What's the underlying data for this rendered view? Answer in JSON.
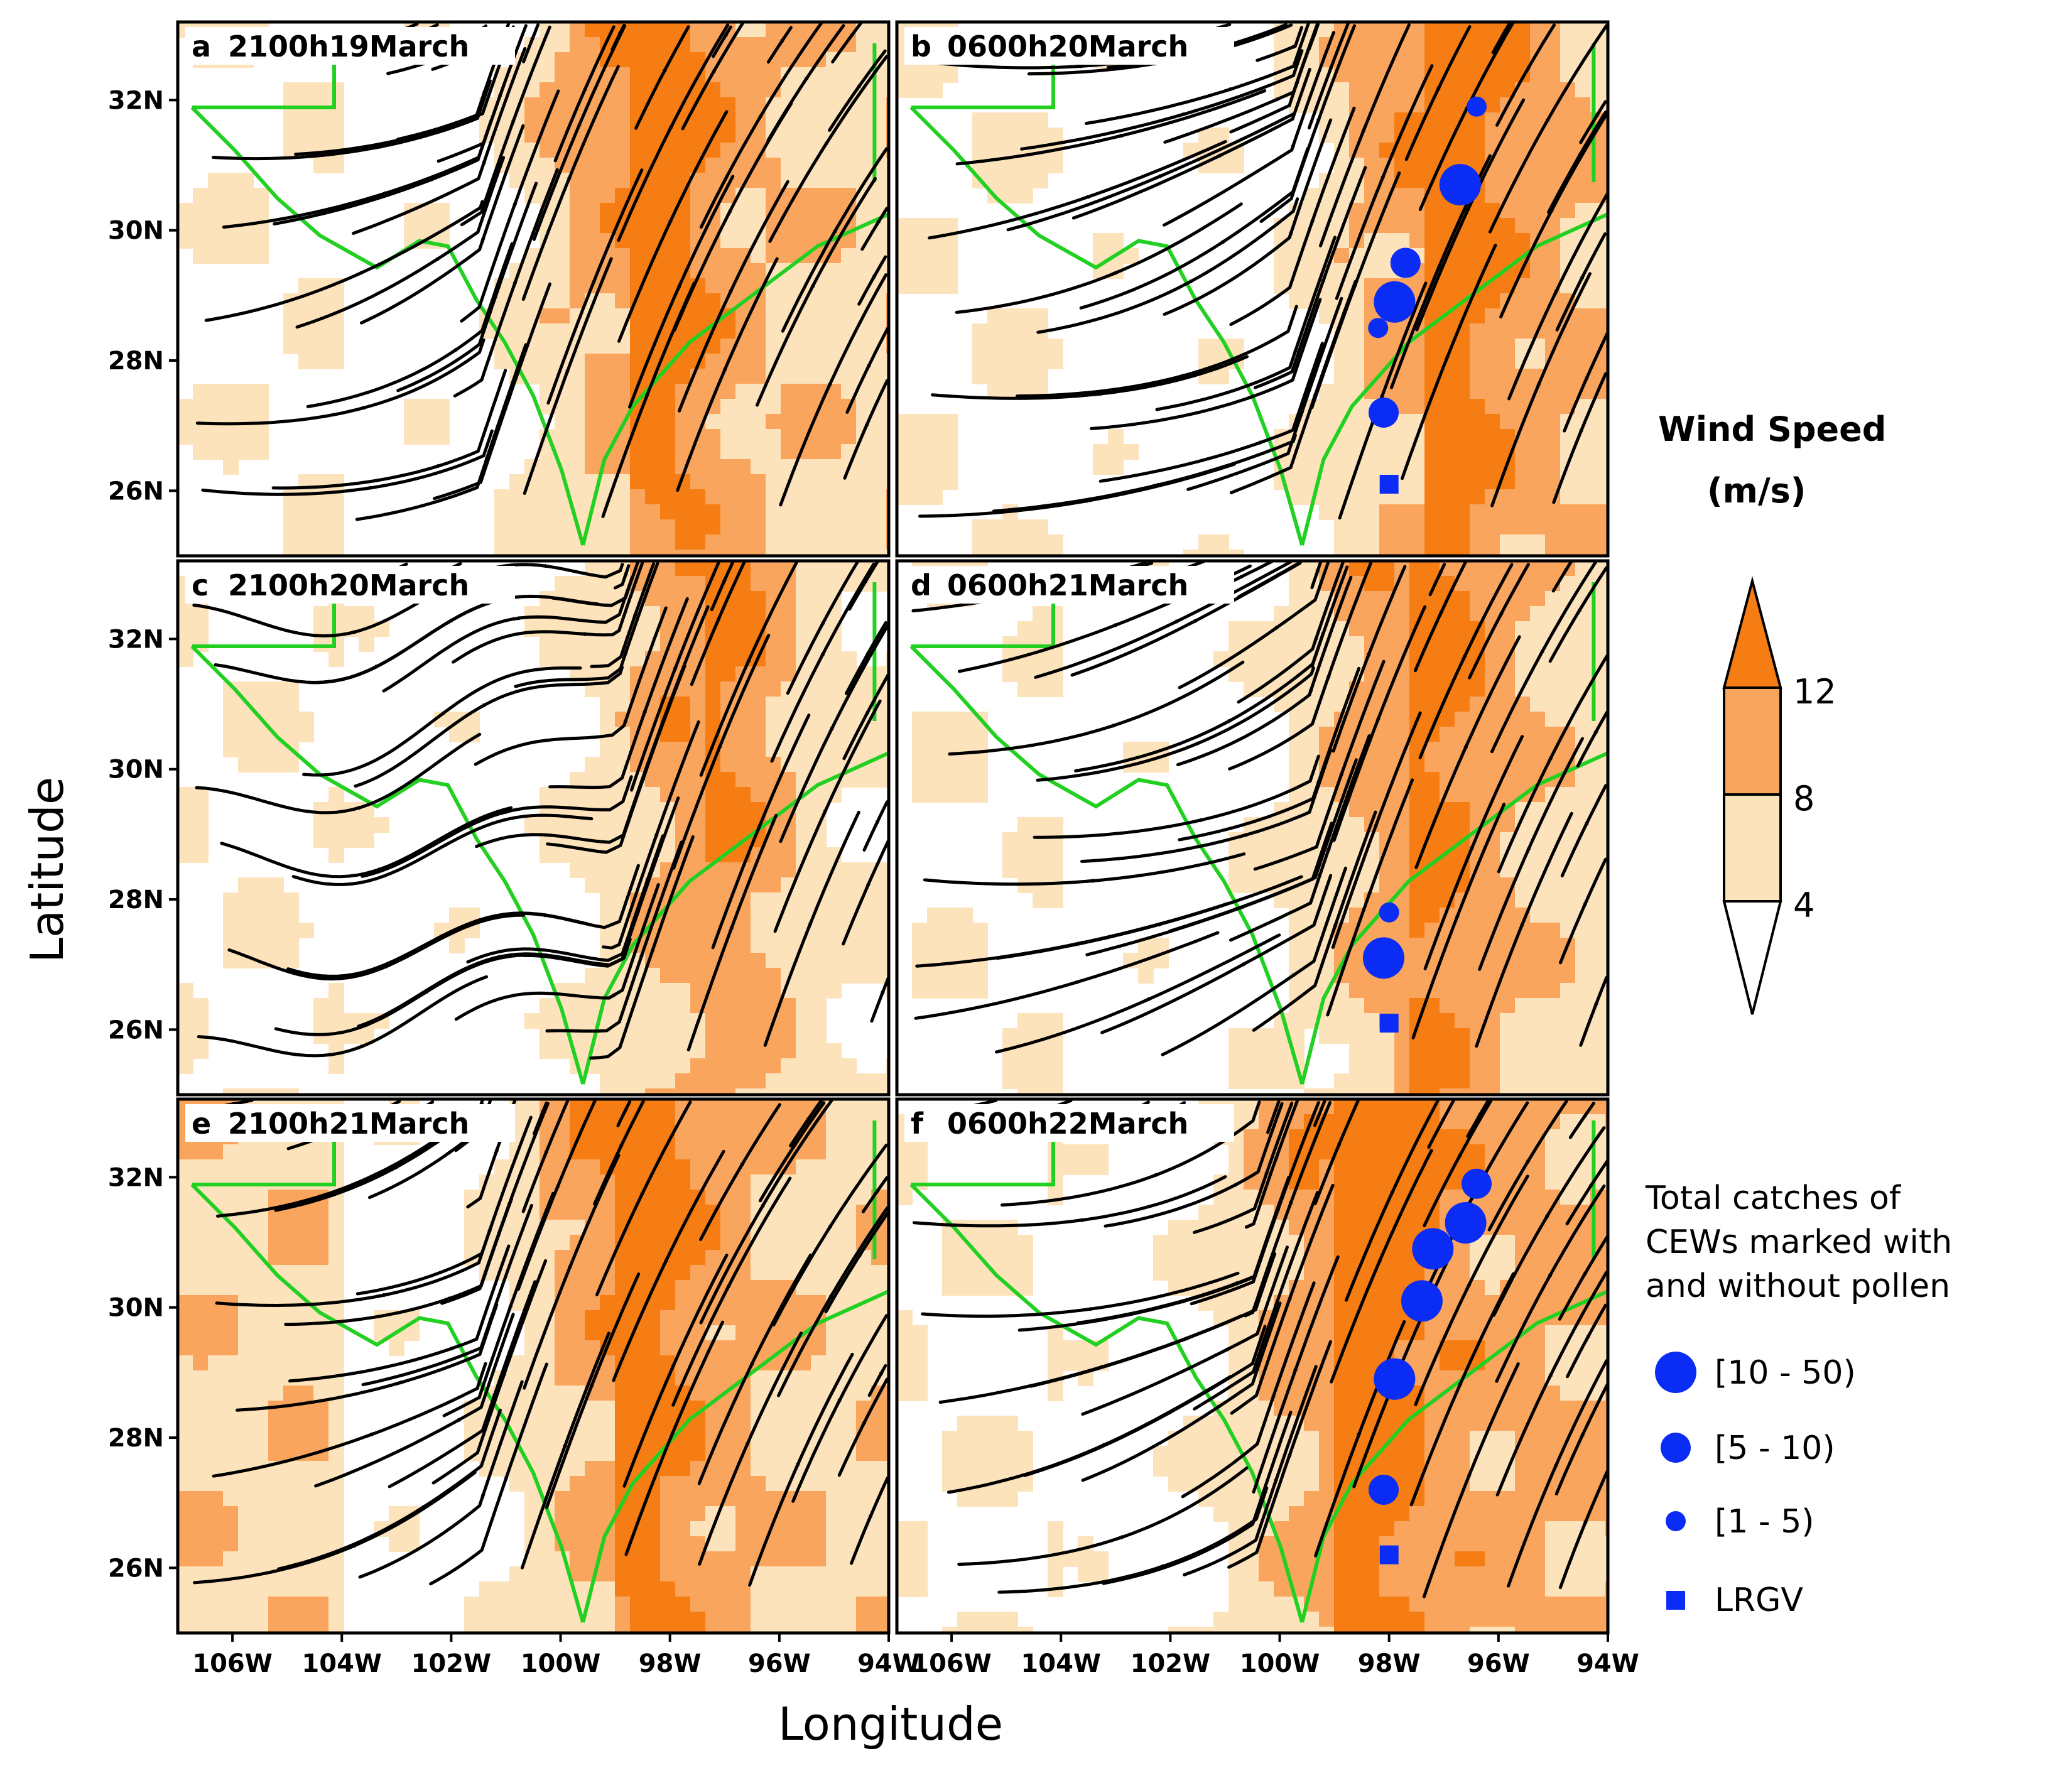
{
  "figure": {
    "ylabel": "Latitude",
    "xlabel": "Longitude",
    "lat_ticks": [
      "32N",
      "30N",
      "28N",
      "26N"
    ],
    "lon_ticks": [
      "106W",
      "104W",
      "102W",
      "100W",
      "98W",
      "96W",
      "94W"
    ],
    "panels": [
      {
        "letter": "a",
        "time": "2100h19March",
        "catches": []
      },
      {
        "letter": "b",
        "time": "0600h20March",
        "catches": [
          {
            "lon": -96.4,
            "lat": 31.9,
            "class": "1-5"
          },
          {
            "lon": -96.7,
            "lat": 30.7,
            "class": "10-50"
          },
          {
            "lon": -97.7,
            "lat": 29.5,
            "class": "5-10"
          },
          {
            "lon": -97.9,
            "lat": 28.9,
            "class": "10-50"
          },
          {
            "lon": -98.2,
            "lat": 28.5,
            "class": "1-5"
          },
          {
            "lon": -98.1,
            "lat": 27.2,
            "class": "5-10"
          },
          {
            "lon": -98.0,
            "lat": 26.1,
            "class": "LRGV"
          }
        ]
      },
      {
        "letter": "c",
        "time": "2100h20March",
        "catches": []
      },
      {
        "letter": "d",
        "time": "0600h21March",
        "catches": [
          {
            "lon": -98.0,
            "lat": 27.8,
            "class": "1-5"
          },
          {
            "lon": -98.1,
            "lat": 27.1,
            "class": "10-50"
          },
          {
            "lon": -98.0,
            "lat": 26.1,
            "class": "LRGV"
          }
        ]
      },
      {
        "letter": "e",
        "time": "2100h21March",
        "catches": []
      },
      {
        "letter": "f",
        "time": "0600h22March",
        "catches": [
          {
            "lon": -96.4,
            "lat": 31.9,
            "class": "5-10"
          },
          {
            "lon": -96.6,
            "lat": 31.3,
            "class": "10-50"
          },
          {
            "lon": -97.2,
            "lat": 30.9,
            "class": "10-50"
          },
          {
            "lon": -97.4,
            "lat": 30.1,
            "class": "10-50"
          },
          {
            "lon": -97.9,
            "lat": 28.9,
            "class": "10-50"
          },
          {
            "lon": -98.1,
            "lat": 27.2,
            "class": "5-10"
          },
          {
            "lon": -98.0,
            "lat": 26.2,
            "class": "LRGV"
          }
        ]
      }
    ]
  },
  "colorbar": {
    "title_line1": "Wind Speed",
    "title_line2": "(m/s)",
    "ticks": [
      "12",
      "8",
      "4"
    ],
    "colors": [
      "#ffffff",
      "#fde3bb",
      "#f9a55e",
      "#f57d13"
    ]
  },
  "legend": {
    "title_lines": [
      "Total catches of",
      "CEWs marked with",
      "and without pollen"
    ],
    "items": [
      {
        "label": "[10 - 50)",
        "marker": "circle-large"
      },
      {
        "label": "[5 - 10)",
        "marker": "circle-medium"
      },
      {
        "label": "[1 - 5)",
        "marker": "circle-small"
      },
      {
        "label": "LRGV",
        "marker": "square"
      }
    ],
    "marker_color": "#0a2cf5"
  },
  "colors": {
    "coast_border": "#22d022",
    "streamline": "#000000"
  }
}
